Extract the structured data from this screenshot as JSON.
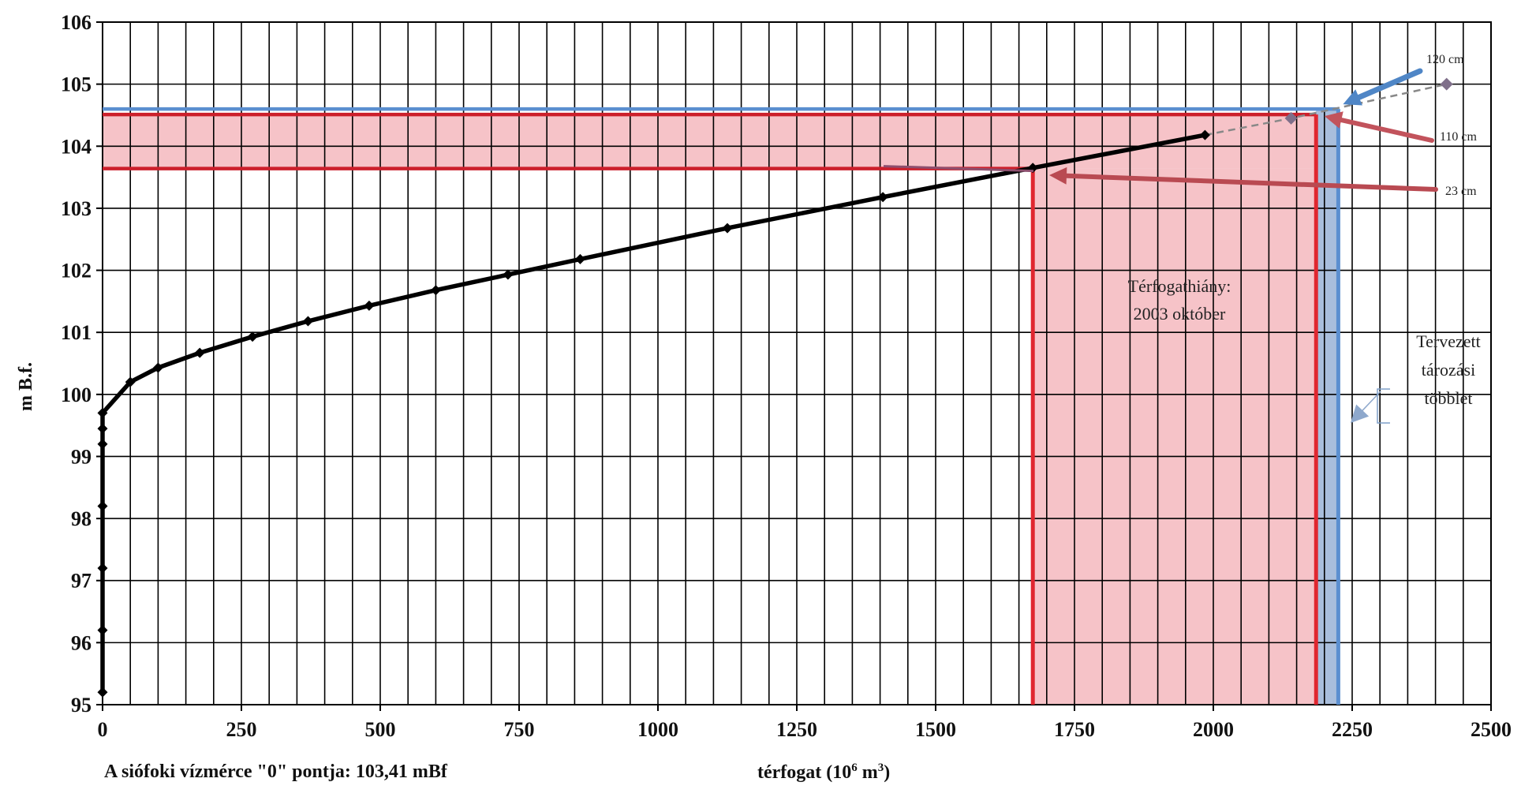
{
  "chart_data": {
    "type": "line",
    "xlabel": "térfogat (10",
    "xlabel_sup": "6",
    "xlabel_unit": " m",
    "xlabel_sup2": "3",
    "xlabel_close": ")",
    "ylabel": "m    B.f.",
    "xlim": [
      0,
      2500
    ],
    "ylim": [
      95,
      106
    ],
    "x_ticks": [
      0,
      250,
      500,
      750,
      1000,
      1250,
      1500,
      1750,
      2000,
      2250,
      2500
    ],
    "y_ticks": [
      95,
      96,
      97,
      98,
      99,
      100,
      101,
      102,
      103,
      104,
      105,
      106
    ],
    "x_minor_step": 50,
    "grid": true,
    "series": [
      {
        "points": [
          [
            0,
            95.2
          ],
          [
            0,
            96.2
          ],
          [
            0,
            97.2
          ],
          [
            0,
            98.2
          ],
          [
            0,
            99.2
          ],
          [
            0,
            99.45
          ],
          [
            0,
            99.7
          ],
          [
            50,
            100.2
          ],
          [
            100,
            100.43
          ],
          [
            175,
            100.67
          ],
          [
            270,
            100.93
          ],
          [
            370,
            101.18
          ],
          [
            480,
            101.43
          ],
          [
            600,
            101.68
          ],
          [
            730,
            101.93
          ],
          [
            860,
            102.18
          ],
          [
            1125,
            102.68
          ],
          [
            1405,
            103.18
          ],
          [
            1675,
            103.65
          ],
          [
            1985,
            104.18
          ]
        ],
        "color": "#000000"
      },
      {
        "points": [
          [
            1985,
            104.18
          ],
          [
            2140,
            104.45
          ],
          [
            2420,
            105.0
          ]
        ],
        "color": "#888888",
        "dashed": true,
        "markers": "#7f6f8a"
      }
    ],
    "levels": [
      {
        "y": 104.6,
        "x_end": 2225,
        "color": "#5b8fd0"
      },
      {
        "y": 104.51,
        "x_end": 2185,
        "color": "#cc1f2b"
      },
      {
        "y": 103.64,
        "x_end": 1675,
        "color": "#cc1f2b"
      }
    ],
    "shaded": [
      {
        "x": [
          0,
          2185
        ],
        "y": [
          103.64,
          104.51
        ],
        "color": "#f6c3c8"
      },
      {
        "x": [
          1675,
          2185
        ],
        "y": [
          95,
          103.64
        ],
        "color": "#f6c3c8"
      },
      {
        "x": [
          2185,
          2225
        ],
        "y": [
          95,
          104.6
        ],
        "color": "#a9bedc"
      }
    ],
    "verticals": [
      {
        "x": 1675,
        "y_top": 103.64,
        "color": "#e0262f"
      },
      {
        "x": 2185,
        "y_top": 104.51,
        "color": "#e0262f"
      },
      {
        "x": 2225,
        "y_top": 104.6,
        "color": "#5b8fd0"
      }
    ],
    "annotations": {
      "deficit_line1": "Térfogathiány:",
      "deficit_line2": "2003 október",
      "planned_line1": "Tervezett",
      "planned_line2": "tározási",
      "planned_line3": "többlet",
      "label_120": "120 cm",
      "label_110": "110 cm",
      "label_23": "23 cm"
    }
  },
  "footnote": "A siófoki vízmérce \"0\" pontja:  103,41 mBf"
}
